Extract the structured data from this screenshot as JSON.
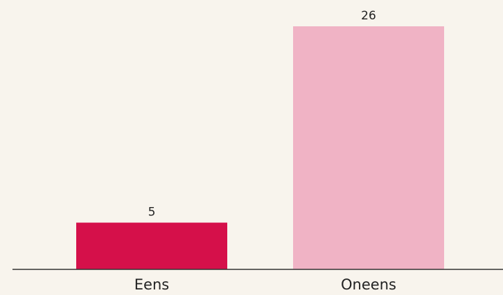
{
  "chart_data": {
    "type": "bar",
    "categories": [
      "Eens",
      "Oneens"
    ],
    "values": [
      5,
      26
    ],
    "colors": [
      "#d5104a",
      "#f0b3c5"
    ]
  }
}
